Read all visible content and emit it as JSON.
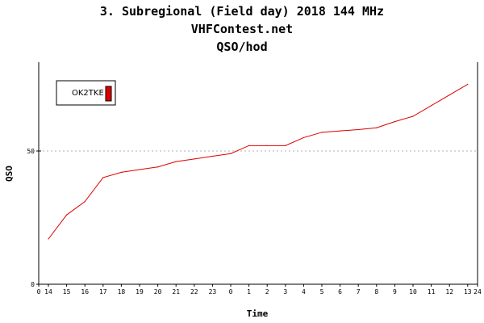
{
  "chart_data": {
    "type": "line",
    "title": "3. Subregional (Field day) 2018 144 MHz",
    "subtitle": "VHFContest.net",
    "subtitle2": "QSO/hod",
    "xlabel": "Time",
    "ylabel": "QSO",
    "x_tick_labels": [
      "0",
      "14",
      "15",
      "16",
      "17",
      "18",
      "19",
      "20",
      "21",
      "22",
      "23",
      "0",
      "1",
      "2",
      "3",
      "4",
      "5",
      "6",
      "7",
      "8",
      "9",
      "10",
      "11",
      "12",
      "13",
      "24"
    ],
    "y_tick_labels": [
      "0",
      "50"
    ],
    "ylim": [
      0,
      75
    ],
    "grid": "dashed line at 50",
    "legend_position": "top-left",
    "colors": {
      "series": "#dd0000",
      "axis": "#000000",
      "grid": "#b0b0b0"
    },
    "series": [
      {
        "name": "OK2TKE",
        "values": [
          17,
          26,
          31,
          40,
          42,
          43,
          44,
          46,
          47,
          48,
          49,
          52,
          52,
          52,
          55,
          57,
          57.5,
          58,
          58.7,
          61,
          63,
          67,
          71,
          75
        ]
      }
    ]
  }
}
